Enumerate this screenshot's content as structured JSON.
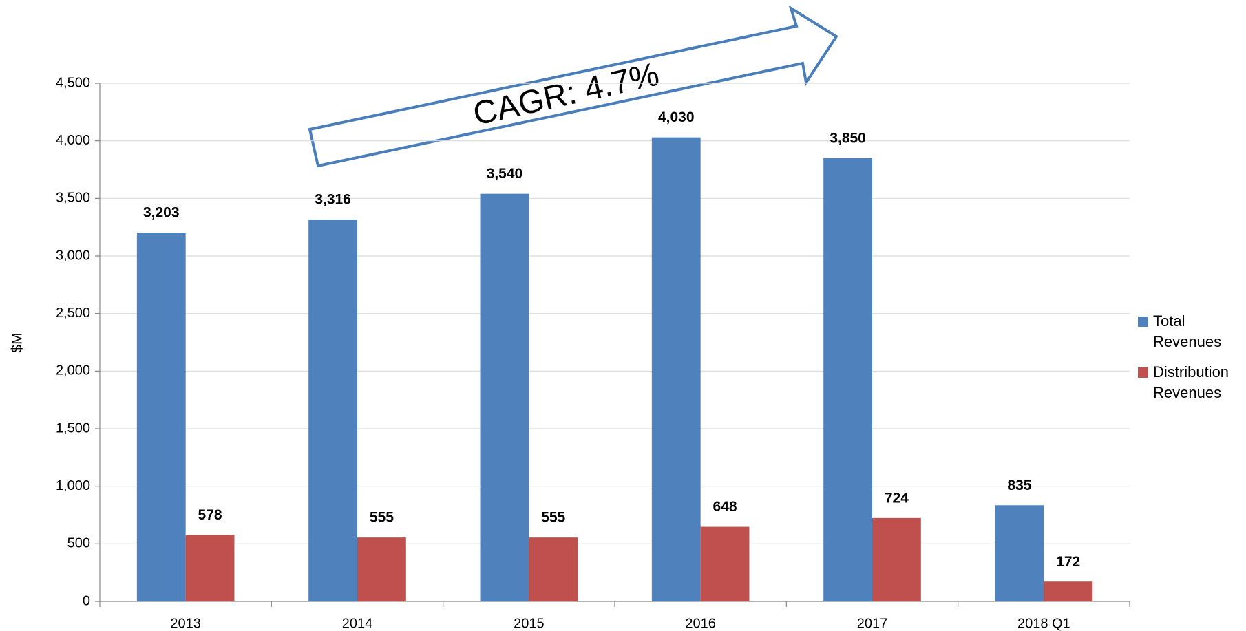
{
  "chart_data": {
    "type": "bar",
    "y_label": "$M",
    "annotation": "CAGR: 4.7%",
    "categories": [
      "2013",
      "2014",
      "2015",
      "2016",
      "2017",
      "2018 Q1"
    ],
    "series": [
      {
        "name": "Total Revenues",
        "color": "#4f81bd",
        "values": [
          3203,
          3316,
          3540,
          4030,
          3850,
          835
        ],
        "value_labels": [
          "3,203",
          "3,316",
          "3,540",
          "4,030",
          "3,850",
          "835"
        ]
      },
      {
        "name": "Distribution Revenues",
        "color": "#c0504d",
        "values": [
          578,
          555,
          555,
          648,
          724,
          172
        ]
      }
    ],
    "ylim": [
      0,
      4500
    ],
    "yticks": [
      0,
      500,
      {
        "value": 1000,
        "label": "1,000"
      },
      {
        "value": 1500,
        "label": "1,500"
      },
      {
        "value": 2000,
        "label": "2,000"
      },
      {
        "value": 2500,
        "label": "2,500"
      },
      {
        "value": 3000,
        "label": "3,000"
      },
      {
        "value": 3500,
        "label": "3,500"
      },
      {
        "value": 4000,
        "label": "4,000"
      },
      {
        "value": 4500,
        "label": "4,500"
      }
    ],
    "grid": true,
    "legend": "right"
  }
}
